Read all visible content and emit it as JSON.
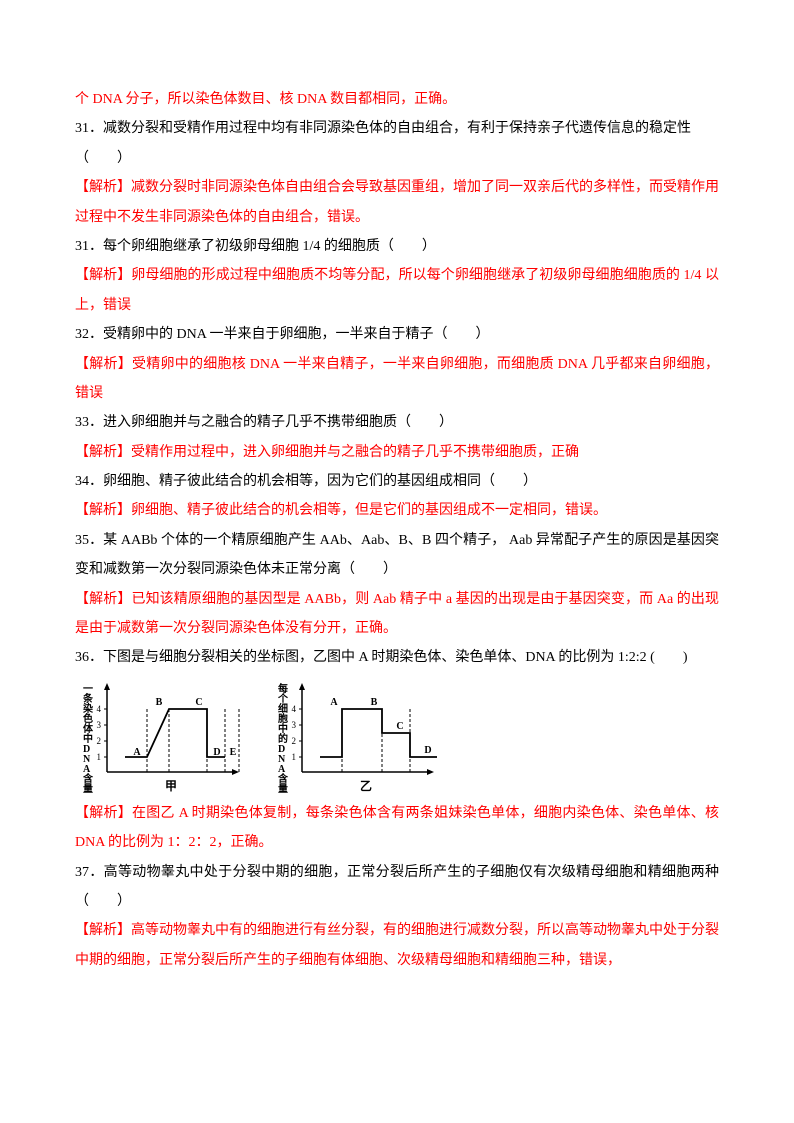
{
  "intro_red": "个 DNA 分子，所以染色体数目、核 DNA 数目都相同，正确。",
  "q31a": {
    "text": "31．减数分裂和受精作用过程中均有非同源染色体的自由组合，有利于保持亲子代遗传信息的稳定性",
    "blank": "（　　）",
    "analysis": "【解析】减数分裂时非同源染色体自由组合会导致基因重组，增加了同一双亲后代的多样性，而受精作用过程中不发生非同源染色体的自由组合，错误。"
  },
  "q31b": {
    "text": "31．每个卵细胞继承了初级卵母细胞 1/4 的细胞质（　　）",
    "analysis": "【解析】卵母细胞的形成过程中细胞质不均等分配，所以每个卵细胞继承了初级卵母细胞细胞质的 1/4 以上，错误"
  },
  "q32": {
    "text": "32．受精卵中的 DNA 一半来自于卵细胞，一半来自于精子（　　）",
    "analysis": "【解析】受精卵中的细胞核 DNA 一半来自精子，一半来自卵细胞，而细胞质 DNA 几乎都来自卵细胞，错误"
  },
  "q33": {
    "text": "33．进入卵细胞并与之融合的精子几乎不携带细胞质（　　）",
    "analysis": "【解析】受精作用过程中，进入卵细胞并与之融合的精子几乎不携带细胞质，正确"
  },
  "q34": {
    "text": "34．卵细胞、精子彼此结合的机会相等，因为它们的基因组成相同（　　）",
    "analysis": "【解析】卵细胞、精子彼此结合的机会相等，但是它们的基因组成不一定相同，错误。"
  },
  "q35": {
    "text": "35．某 AABb 个体的一个精原细胞产生 AAb、Aab、B、B 四个精子， Aab 异常配子产生的原因是基因突变和减数第一次分裂同源染色体未正常分离（　　）",
    "analysis": "【解析】已知该精原细胞的基因型是 AABb，则 Aab 精子中 a 基因的出现是由于基因突变，而 Aa 的出现是由于减数第一次分裂同源染色体没有分开，正确。"
  },
  "q36": {
    "text": "36．下图是与细胞分裂相关的坐标图，乙图中 A 时期染色体、染色单体、DNA 的比例为 1:2:2 (　　)",
    "analysis": "【解析】在图乙 A 时期染色体复制，每条染色体含有两条姐妹染色单体，细胞内染色体、染色单体、核 DNA 的比例为 1：2：2，正确。"
  },
  "q37": {
    "text": "37．高等动物睾丸中处于分裂中期的细胞，正常分裂后所产生的子细胞仅有次级精母细胞和精细胞两种（　　）",
    "analysis": "【解析】高等动物睾丸中有的细胞进行有丝分裂，有的细胞进行减数分裂，所以高等动物睾丸中处于分裂中期的细胞，正常分裂后所产生的子细胞有体细胞、次级精母细胞和精细胞三种，错误，"
  },
  "chart1": {
    "ylabel": "一条染色体中DNA含量",
    "xlabel": "甲",
    "yticks": [
      "1",
      "2",
      "3",
      "4"
    ],
    "segments": [
      "A",
      "B",
      "C",
      "D",
      "E"
    ],
    "line_color": "#000000",
    "points": [
      {
        "x": 18,
        "y": 80
      },
      {
        "x": 40,
        "y": 80
      },
      {
        "x": 62,
        "y": 32
      },
      {
        "x": 100,
        "y": 32
      },
      {
        "x": 100,
        "y": 80
      },
      {
        "x": 118,
        "y": 80
      }
    ],
    "dash_x": [
      40,
      62,
      100,
      118,
      132
    ]
  },
  "chart2": {
    "ylabel": "每个细胞中的DNA含量",
    "xlabel": "乙",
    "yticks": [
      "1",
      "2",
      "3",
      "4"
    ],
    "segments": [
      "A",
      "B",
      "C",
      "D"
    ],
    "line_color": "#000000",
    "points": [
      {
        "x": 18,
        "y": 80
      },
      {
        "x": 40,
        "y": 80
      },
      {
        "x": 40,
        "y": 32
      },
      {
        "x": 80,
        "y": 32
      },
      {
        "x": 80,
        "y": 56
      },
      {
        "x": 108,
        "y": 56
      },
      {
        "x": 108,
        "y": 80
      },
      {
        "x": 135,
        "y": 80
      }
    ],
    "dash_x": [
      40,
      80,
      108
    ]
  }
}
